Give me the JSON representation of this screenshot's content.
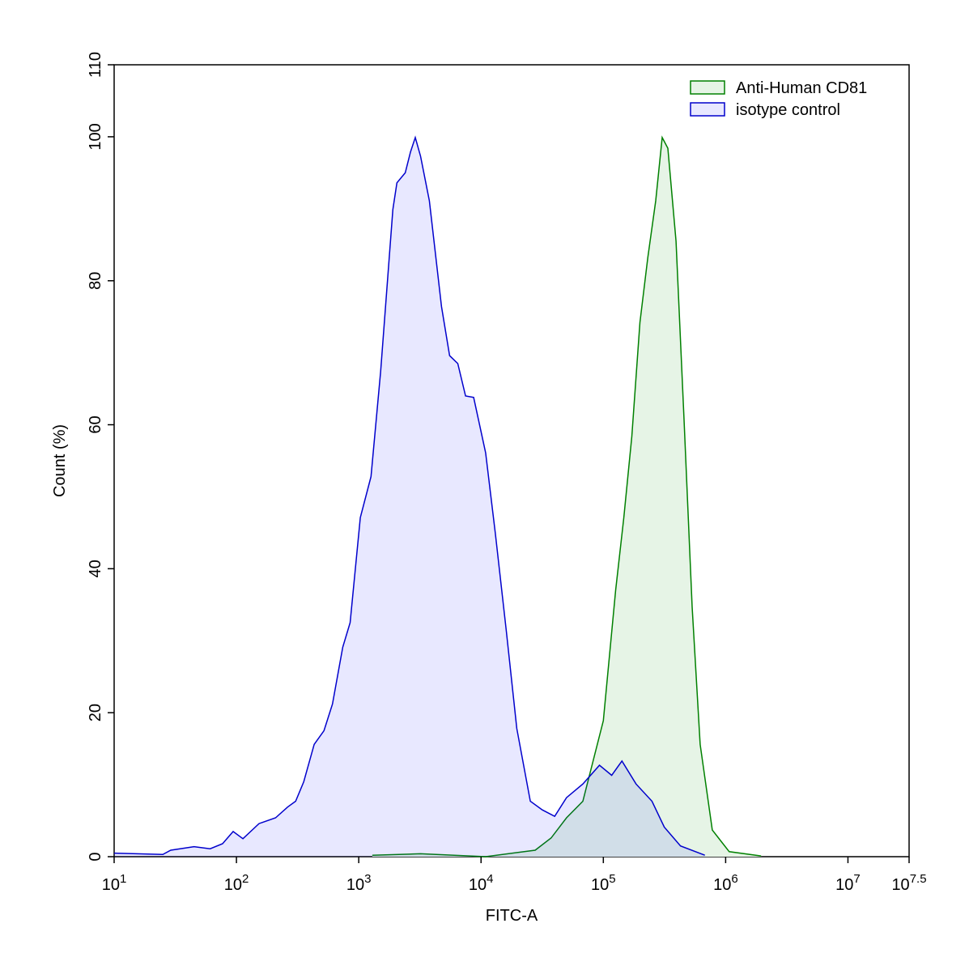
{
  "chart_data": {
    "type": "histogram-overlay",
    "x_label": "FITC-A",
    "y_label": "Count  (%)",
    "xscale": "log",
    "xlim": [
      10,
      31622776.6
    ],
    "xticks": [
      {
        "value": 10,
        "label": "10^1"
      },
      {
        "value": 100,
        "label": "10^2"
      },
      {
        "value": 1000,
        "label": "10^3"
      },
      {
        "value": 10000,
        "label": "10^4"
      },
      {
        "value": 100000,
        "label": "10^5"
      },
      {
        "value": 1000000,
        "label": "10^6"
      },
      {
        "value": 10000000,
        "label": "10^7"
      },
      {
        "value": 31622776.6,
        "label": "10^7.5"
      }
    ],
    "ylim": [
      0,
      110
    ],
    "yticks": [
      0,
      20,
      40,
      60,
      80,
      100,
      110
    ],
    "legend": "top-right",
    "series": [
      {
        "name": "Anti-Human CD81",
        "color": "#008000",
        "fill": "#e6f4e6",
        "fill_opacity": 1,
        "x": [
          1290,
          3200,
          10900,
          27700,
          37400,
          50000,
          68000,
          100000,
          126000,
          147000,
          171000,
          199000,
          231000,
          268000,
          303000,
          337000,
          393000,
          457000,
          532000,
          619000,
          778000,
          1070000,
          1950000
        ],
        "values": [
          0.2,
          0.4,
          0,
          0.9,
          2.6,
          5.4,
          7.7,
          18.9,
          37.0,
          47.1,
          58.4,
          74.2,
          83.2,
          91.1,
          99.9,
          98.4,
          85.5,
          60.7,
          34.7,
          15.6,
          3.7,
          0.7,
          0.1
        ]
      },
      {
        "name": "isotype control",
        "color": "#0000cc",
        "fill": "#0000ff",
        "fill_opacity": 0.09,
        "x": [
          10,
          25,
          29,
          45,
          61,
          77,
          94,
          113,
          153,
          209,
          262,
          305,
          355,
          432,
          520,
          610,
          740,
          850,
          1030,
          1260,
          1510,
          1900,
          2050,
          2400,
          2650,
          2900,
          3200,
          3780,
          4750,
          5530,
          6450,
          7470,
          8700,
          10900,
          13100,
          16100,
          19600,
          25300,
          31700,
          40000,
          50000,
          68000,
          93000,
          117000,
          142000,
          185000,
          250000,
          315000,
          427000,
          676000
        ],
        "values": [
          0.5,
          0.3,
          0.9,
          1.4,
          1.1,
          1.8,
          3.5,
          2.5,
          4.6,
          5.4,
          6.9,
          7.7,
          10.4,
          15.6,
          17.5,
          21.2,
          29.1,
          32.5,
          47.1,
          52.8,
          67.4,
          89.9,
          93.6,
          95.0,
          97.9,
          99.9,
          97.3,
          91.1,
          76.4,
          69.6,
          68.5,
          64.0,
          63.8,
          56.1,
          44.9,
          31.3,
          17.8,
          7.7,
          6.5,
          5.6,
          8.2,
          10.1,
          12.7,
          11.3,
          13.3,
          10.1,
          7.7,
          4.1,
          1.5,
          0.2
        ]
      }
    ]
  }
}
